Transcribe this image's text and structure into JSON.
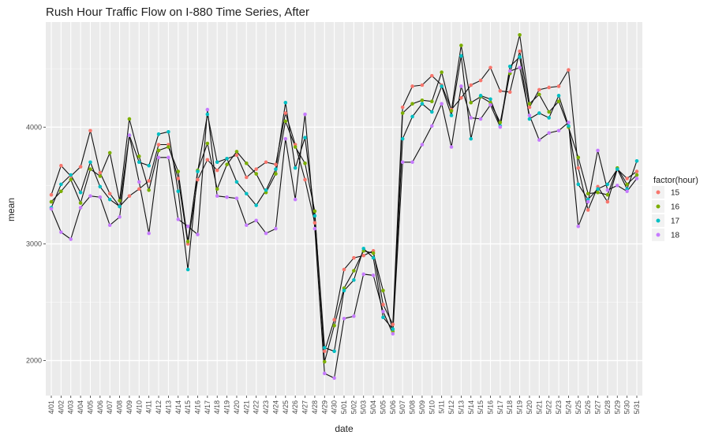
{
  "chart_data": {
    "type": "line",
    "title": "Rush Hour Traffic Flow on I-880 Time Series, After",
    "xlabel": "date",
    "ylabel": "mean",
    "ylim": [
      1700,
      4900
    ],
    "yticks": [
      2000,
      3000,
      4000
    ],
    "grid": true,
    "legend_position": "right",
    "legend_title": "factor(hour)",
    "categories": [
      "4/01",
      "4/02",
      "4/03",
      "4/04",
      "4/05",
      "4/06",
      "4/07",
      "4/08",
      "4/09",
      "4/10",
      "4/11",
      "4/12",
      "4/13",
      "4/14",
      "4/15",
      "4/16",
      "4/17",
      "4/18",
      "4/19",
      "4/20",
      "4/21",
      "4/22",
      "4/23",
      "4/24",
      "4/25",
      "4/26",
      "4/27",
      "4/28",
      "4/29",
      "4/30",
      "5/01",
      "5/02",
      "5/03",
      "5/04",
      "5/05",
      "5/06",
      "5/07",
      "5/08",
      "5/09",
      "5/10",
      "5/11",
      "5/12",
      "5/13",
      "5/14",
      "5/15",
      "5/16",
      "5/17",
      "5/18",
      "5/19",
      "5/20",
      "5/21",
      "5/22",
      "5/23",
      "5/24",
      "5/25",
      "5/26",
      "5/27",
      "5/28",
      "5/29",
      "5/30",
      "5/31"
    ],
    "series": [
      {
        "name": "15",
        "color": "#F8766D",
        "values": [
          3420,
          3670,
          3580,
          3660,
          3970,
          3610,
          3430,
          3320,
          3410,
          3470,
          3540,
          3850,
          3850,
          3560,
          3000,
          3550,
          3720,
          3630,
          3730,
          3760,
          3570,
          3640,
          3700,
          3680,
          4120,
          3850,
          3550,
          3180,
          2080,
          2350,
          2780,
          2880,
          2900,
          2940,
          2480,
          2310,
          4170,
          4350,
          4360,
          4440,
          4360,
          4150,
          4250,
          4360,
          4400,
          4510,
          4310,
          4300,
          4650,
          4170,
          4320,
          4340,
          4350,
          4490,
          3650,
          3290,
          3490,
          3360,
          3640,
          3560,
          3620
        ]
      },
      {
        "name": "16",
        "color": "#7CAE00",
        "values": [
          3360,
          3450,
          3550,
          3350,
          3640,
          3580,
          3780,
          3370,
          4070,
          3750,
          3460,
          3800,
          3830,
          3620,
          3020,
          3630,
          3860,
          3470,
          3680,
          3790,
          3690,
          3600,
          3440,
          3600,
          4050,
          3830,
          3690,
          3280,
          1990,
          2300,
          2620,
          2770,
          2940,
          2920,
          2600,
          2250,
          4120,
          4200,
          4230,
          4220,
          4470,
          4140,
          4700,
          4210,
          4260,
          4210,
          4040,
          4460,
          4790,
          4200,
          4280,
          4130,
          4220,
          4000,
          3740,
          3430,
          3440,
          3420,
          3650,
          3510,
          3590
        ]
      },
      {
        "name": "17",
        "color": "#00BFC4",
        "values": [
          3310,
          3510,
          3590,
          3440,
          3700,
          3490,
          3380,
          3320,
          3930,
          3700,
          3670,
          3940,
          3960,
          3450,
          2780,
          3620,
          4110,
          3700,
          3730,
          3530,
          3430,
          3330,
          3460,
          3640,
          4210,
          3650,
          3910,
          3240,
          2110,
          2080,
          2600,
          2690,
          2960,
          2880,
          2370,
          2270,
          3900,
          4090,
          4200,
          4130,
          4350,
          4100,
          4610,
          3900,
          4270,
          4240,
          4010,
          4520,
          4600,
          4070,
          4120,
          4080,
          4270,
          4010,
          3510,
          3380,
          3470,
          3510,
          3640,
          3470,
          3710
        ]
      },
      {
        "name": "18",
        "color": "#C77CFF",
        "values": [
          3300,
          3100,
          3040,
          3310,
          3410,
          3400,
          3160,
          3230,
          3930,
          3530,
          3090,
          3740,
          3740,
          3210,
          3150,
          3080,
          4150,
          3410,
          3400,
          3390,
          3160,
          3200,
          3090,
          3130,
          3900,
          3380,
          4110,
          3130,
          1890,
          1850,
          2360,
          2380,
          2740,
          2730,
          2420,
          2230,
          3700,
          3700,
          3850,
          4010,
          4200,
          3830,
          4350,
          4080,
          4070,
          4190,
          4000,
          4480,
          4510,
          4100,
          3890,
          3950,
          3970,
          4040,
          3150,
          3360,
          3800,
          3460,
          3500,
          3450,
          3560
        ]
      }
    ]
  }
}
